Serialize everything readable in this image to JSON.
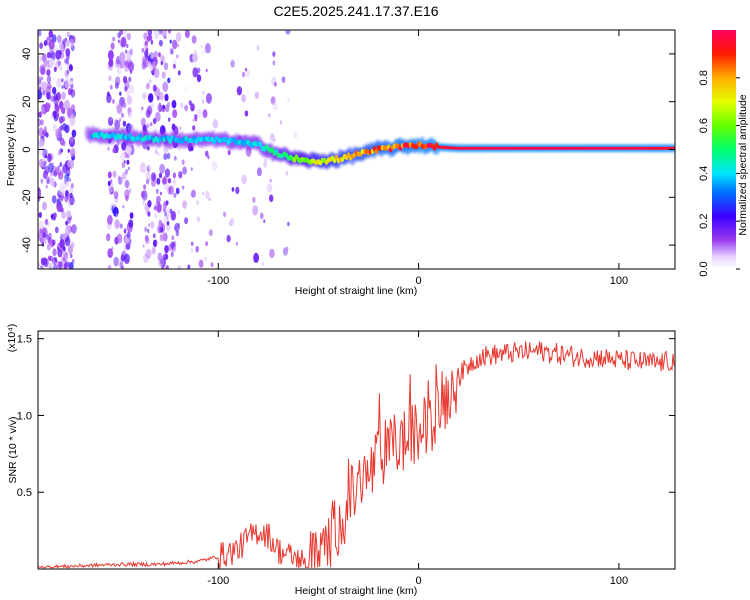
{
  "title": "C2E5.2025.241.17.37.E16",
  "chart_data": [
    {
      "type": "heatmap",
      "title": "C2E5.2025.241.17.37.E16",
      "xlabel": "Height of straight line (km)",
      "ylabel": "Frequency (Hz)",
      "xlim": [
        -190,
        128
      ],
      "ylim": [
        -50,
        50
      ],
      "xticks": [
        -100,
        0,
        100
      ],
      "xtick_labels": [
        "-100",
        "0",
        "100"
      ],
      "yticks": [
        -40,
        -20,
        0,
        20,
        40
      ],
      "ytick_labels": [
        "-40",
        "-20",
        "0",
        "20",
        "40"
      ],
      "colorbar": {
        "label": "Normalized spectral amplitude",
        "range": [
          0.0,
          1.0
        ],
        "ticks": [
          0.0,
          0.2,
          0.4,
          0.6,
          0.8
        ],
        "tick_labels": [
          "0.0",
          "0.2",
          "0.4",
          "0.6",
          "0.8"
        ]
      },
      "ridge": {
        "x": [
          -160,
          -140,
          -120,
          -100,
          -80,
          -70,
          -60,
          -50,
          -40,
          -30,
          -20,
          -10,
          0,
          10,
          20,
          40,
          60,
          80,
          100,
          128
        ],
        "frequency": [
          6,
          5,
          4,
          4,
          2,
          -2,
          -4,
          -5,
          -4,
          -2,
          0,
          1,
          2,
          1,
          0.5,
          0.5,
          0.5,
          0.5,
          0.5,
          0.5
        ],
        "amplitude": [
          0.4,
          0.4,
          0.4,
          0.4,
          0.42,
          0.5,
          0.6,
          0.7,
          0.75,
          0.8,
          0.85,
          0.9,
          0.92,
          0.95,
          0.97,
          0.98,
          0.98,
          0.98,
          0.98,
          0.95
        ]
      }
    },
    {
      "type": "line",
      "xlabel": "Height of straight line (km)",
      "ylabel": "SNR (10 * v/v)",
      "y_scale_label": "(x10⁴)",
      "xlim": [
        -190,
        128
      ],
      "ylim": [
        0,
        1.55
      ],
      "xticks": [
        -100,
        0,
        100
      ],
      "xtick_labels": [
        "-100",
        "0",
        "100"
      ],
      "yticks": [
        0.5,
        1.0,
        1.5
      ],
      "ytick_labels": [
        "0.5",
        "1.0",
        "1.5"
      ],
      "series": [
        {
          "name": "SNR",
          "color": "#e8382f",
          "x": [
            -190,
            -170,
            -150,
            -130,
            -110,
            -100,
            -90,
            -85,
            -80,
            -75,
            -70,
            -65,
            -60,
            -55,
            -50,
            -45,
            -40,
            -35,
            -30,
            -25,
            -20,
            -15,
            -10,
            -5,
            0,
            5,
            10,
            15,
            20,
            25,
            30,
            40,
            50,
            60,
            70,
            80,
            90,
            100,
            110,
            120,
            128
          ],
          "y": [
            0.01,
            0.02,
            0.03,
            0.03,
            0.05,
            0.08,
            0.13,
            0.2,
            0.25,
            0.22,
            0.12,
            0.09,
            0.06,
            0.04,
            0.05,
            0.18,
            0.3,
            0.42,
            0.55,
            0.6,
            0.72,
            0.78,
            0.82,
            0.85,
            0.88,
            0.95,
            1.05,
            1.15,
            1.25,
            1.33,
            1.38,
            1.4,
            1.41,
            1.42,
            1.4,
            1.38,
            1.38,
            1.36,
            1.35,
            1.34,
            1.36
          ]
        }
      ]
    }
  ]
}
